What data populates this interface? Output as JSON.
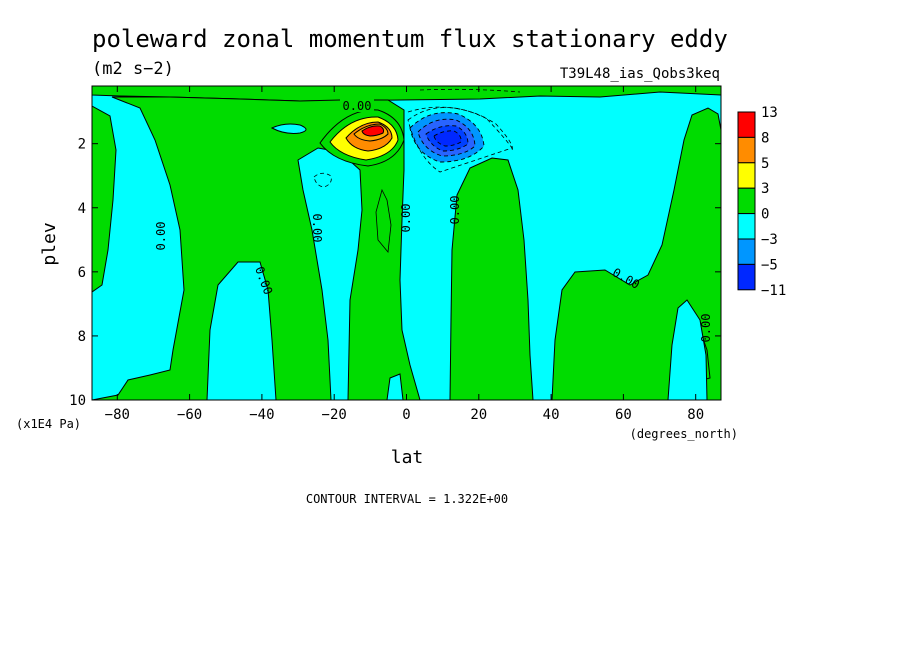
{
  "chart_data": {
    "type": "contour",
    "title": "poleward zonal momentum flux stationary eddy",
    "units": "(m2 s−2)",
    "run_name": "T39L48_ias_Qobs3keq",
    "xlabel": "lat",
    "x_units": "(degrees_north)",
    "ylabel": "plev",
    "y_units": "(x1E4 Pa)",
    "xlim": [
      -87,
      87
    ],
    "ylim": [
      10,
      0.2
    ],
    "x_ticks": [
      "−80",
      "−60",
      "−40",
      "−20",
      "0",
      "20",
      "40",
      "60",
      "80"
    ],
    "x_tick_values": [
      -80,
      -60,
      -40,
      -20,
      0,
      20,
      40,
      60,
      80
    ],
    "y_ticks": [
      "2",
      "4",
      "6",
      "8",
      "10"
    ],
    "y_tick_values": [
      2,
      4,
      6,
      8,
      10
    ],
    "contour_interval": "CONTOUR INTERVAL = 1.322E+00",
    "contour_labels": [
      {
        "text": "0.00",
        "lat": -14,
        "plev": 0.6
      },
      {
        "text": "0.00",
        "lat": -68,
        "plev": 4.8
      },
      {
        "text": "0.00",
        "lat": -27,
        "plev": 4.5
      },
      {
        "text": "0.00",
        "lat": -40,
        "plev": 6.6
      },
      {
        "text": "0.00",
        "lat": 0,
        "plev": 4.3
      },
      {
        "text": "0.00",
        "lat": 14,
        "plev": 4.0
      },
      {
        "text": "0.00",
        "lat": 61,
        "plev": 6.6
      },
      {
        "text": "0.00",
        "lat": 83,
        "plev": 7.8
      }
    ],
    "colorbar": {
      "labels": [
        "13",
        "8",
        "5",
        "3",
        "0",
        "−3",
        "−5",
        "−11"
      ],
      "colors": [
        "#ff0000",
        "#ff8c00",
        "#ffff00",
        "#00dc00",
        "#00ffff",
        "#0096ff",
        "#0028ff"
      ]
    },
    "features": [
      {
        "name": "positive maximum",
        "lat": -10,
        "plev": 1.5,
        "value": 13
      },
      {
        "name": "negative minimum",
        "lat": 11,
        "plev": 1.5,
        "value": -11
      }
    ],
    "colors": {
      "positive": "#00dc00",
      "negative": "#00ffff"
    }
  }
}
